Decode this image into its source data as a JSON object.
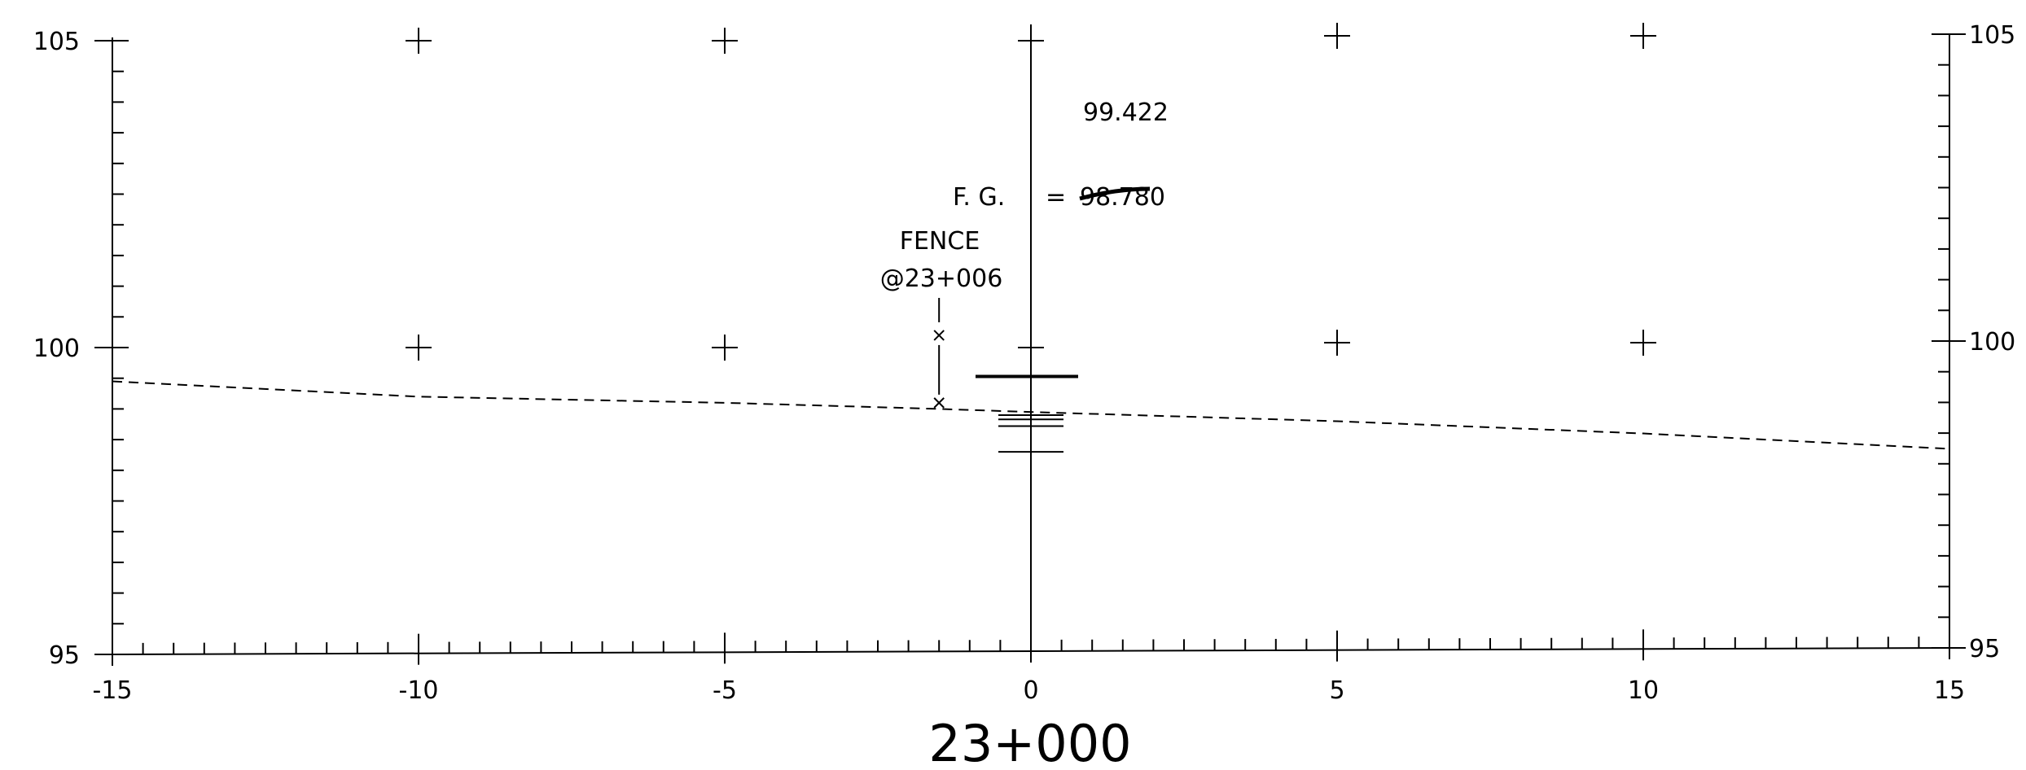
{
  "chart_data": {
    "type": "line",
    "title": "",
    "xlabel": "",
    "ylabel": "",
    "xlim": [
      -15,
      15
    ],
    "ylim": [
      95,
      105
    ],
    "x_ticks": [
      -15,
      -10,
      -5,
      0,
      5,
      10,
      15
    ],
    "x_tick_labels": [
      "-15",
      "-10",
      "-5",
      "0",
      "5",
      "10",
      "15"
    ],
    "y_ticks": [
      95,
      100,
      105
    ],
    "y_tick_labels_left": [
      "95",
      "100",
      "105"
    ],
    "y_tick_labels_right": [
      "95",
      "100",
      "105"
    ],
    "grid": "cross markers at 5 m x 5 m",
    "series": [
      {
        "style": "dashed",
        "x": [
          -15,
          -10,
          -5,
          -1.5,
          0,
          5,
          10,
          15
        ],
        "y": [
          99.45,
          99.2,
          99.1,
          99.0,
          98.95,
          98.8,
          98.6,
          98.35
        ]
      }
    ],
    "fence": {
      "x": -1.5,
      "y_top": 100.2,
      "y_bottom": 99.1
    },
    "annotations": {
      "station": "23+000",
      "fence_label": "FENCE",
      "fence_station": "@23+006",
      "fg_label": "F. G.",
      "equals": "=",
      "fg_value_struck": "98.780",
      "fg_value_handwritten": "99.422"
    }
  }
}
